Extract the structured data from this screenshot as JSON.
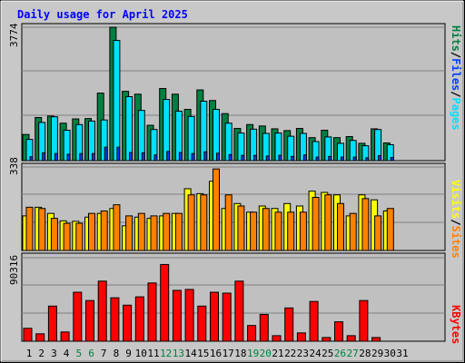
{
  "chart_data": [
    {
      "type": "bar",
      "title": "Daily usage for April 2025",
      "panel": "top",
      "ymax_label": "3774",
      "right_labels": [
        "Pages",
        "Files",
        "Hits"
      ],
      "categories": [
        1,
        2,
        3,
        4,
        5,
        6,
        7,
        8,
        9,
        10,
        11,
        12,
        13,
        14,
        15,
        16,
        17,
        18,
        19,
        20,
        21,
        22,
        23,
        24,
        25,
        26,
        27,
        28,
        29,
        30,
        31
      ],
      "series": [
        {
          "name": "Hits",
          "color": "#008040",
          "values": [
            740,
            1220,
            1260,
            1060,
            1180,
            1190,
            1910,
            3774,
            1960,
            1880,
            1000,
            2040,
            1880,
            1450,
            2000,
            1700,
            1330,
            910,
            1020,
            980,
            900,
            850,
            910,
            650,
            860,
            650,
            680,
            490,
            900,
            500,
            0
          ]
        },
        {
          "name": "Files",
          "color": "#00e0ff",
          "values": [
            600,
            1080,
            1240,
            860,
            1020,
            1120,
            1150,
            3400,
            1810,
            1420,
            880,
            1730,
            1400,
            1250,
            1680,
            1450,
            1060,
            780,
            890,
            770,
            780,
            690,
            770,
            540,
            670,
            490,
            570,
            420,
            880,
            450,
            0
          ]
        },
        {
          "name": "Pages",
          "color": "#0040ff",
          "values": [
            110,
            220,
            200,
            180,
            200,
            200,
            380,
            380,
            230,
            220,
            160,
            260,
            230,
            200,
            250,
            210,
            170,
            150,
            150,
            130,
            150,
            120,
            160,
            100,
            120,
            100,
            100,
            80,
            140,
            90,
            0
          ]
        }
      ],
      "weekend_days": [
        5,
        6,
        12,
        13,
        19,
        20,
        26,
        27
      ]
    },
    {
      "type": "bar",
      "panel": "middle",
      "ymax_label": "338",
      "right_labels": [
        "Sites",
        "Visits"
      ],
      "categories": [
        1,
        2,
        3,
        4,
        5,
        6,
        7,
        8,
        9,
        10,
        11,
        12,
        13,
        14,
        15,
        16,
        17,
        18,
        19,
        20,
        21,
        22,
        23,
        24,
        25,
        26,
        27,
        28,
        29,
        30,
        31
      ],
      "series": [
        {
          "name": "Visits",
          "color": "#ffff00",
          "values": [
            140,
            175,
            150,
            120,
            118,
            135,
            150,
            170,
            100,
            135,
            130,
            140,
            150,
            250,
            230,
            280,
            170,
            190,
            155,
            180,
            170,
            190,
            180,
            240,
            235,
            225,
            140,
            225,
            205,
            160,
            0
          ]
        },
        {
          "name": "Sites",
          "color": "#ff8000",
          "values": [
            175,
            170,
            130,
            110,
            110,
            150,
            160,
            185,
            140,
            150,
            140,
            150,
            150,
            225,
            225,
            330,
            225,
            180,
            155,
            170,
            155,
            155,
            155,
            215,
            225,
            190,
            150,
            210,
            140,
            170,
            0
          ]
        }
      ]
    },
    {
      "type": "bar",
      "panel": "bottom",
      "ymax_label": "90316",
      "right_labels": [
        "KBytes"
      ],
      "categories": [
        1,
        2,
        3,
        4,
        5,
        6,
        7,
        8,
        9,
        10,
        11,
        12,
        13,
        14,
        15,
        16,
        17,
        18,
        19,
        20,
        21,
        22,
        23,
        24,
        25,
        26,
        27,
        28,
        29,
        30,
        31
      ],
      "series": [
        {
          "name": "KBytes",
          "color": "#ff0000",
          "values": [
            14000,
            8000,
            38000,
            10000,
            53000,
            44000,
            65000,
            47000,
            39000,
            48000,
            63000,
            83000,
            55000,
            56000,
            38000,
            53000,
            52000,
            65000,
            17000,
            29000,
            6000,
            36000,
            9000,
            43000,
            4000,
            21000,
            6000,
            44000,
            4000,
            0,
            0
          ]
        }
      ]
    }
  ],
  "colors": {
    "background": "#c8c8c8",
    "plot_bg": "#c0c0c0",
    "gridline": "#808080",
    "title": "#0000ff",
    "weekend_label": "#008040",
    "weekday_label": "#000000"
  }
}
